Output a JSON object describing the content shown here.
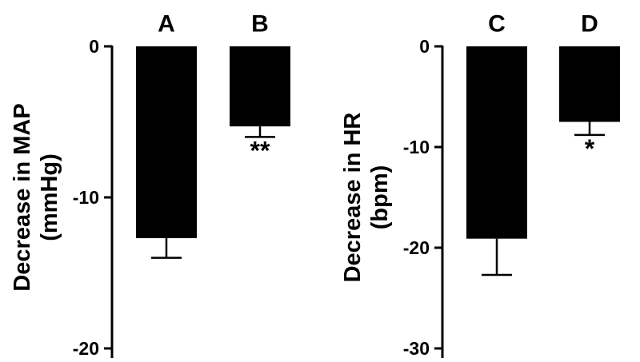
{
  "chart_data": [
    {
      "type": "bar",
      "categories": [
        "A",
        "B"
      ],
      "values": [
        -12.7,
        -5.3
      ],
      "errors": [
        1.3,
        0.7
      ],
      "significance": [
        "",
        "**"
      ],
      "ylabel_line1": "Decrease in MAP",
      "ylabel_line2": "(mmHg)",
      "ylim": [
        -20,
        0
      ],
      "yticks": [
        0,
        -10,
        -20
      ],
      "ytick_labels": [
        "0",
        "-10",
        "-20"
      ]
    },
    {
      "type": "bar",
      "categories": [
        "C",
        "D"
      ],
      "values": [
        -19.1,
        -7.5
      ],
      "errors": [
        3.6,
        1.3
      ],
      "significance": [
        "",
        "*"
      ],
      "ylabel_line1": "Decrease in HR",
      "ylabel_line2": "(bpm)",
      "ylim": [
        -30,
        0
      ],
      "yticks": [
        0,
        -10,
        -20,
        -30
      ],
      "ytick_labels": [
        "0",
        "-10",
        "-20",
        "-30"
      ]
    }
  ],
  "colors": {
    "bar": "#000000",
    "axis": "#000000"
  }
}
